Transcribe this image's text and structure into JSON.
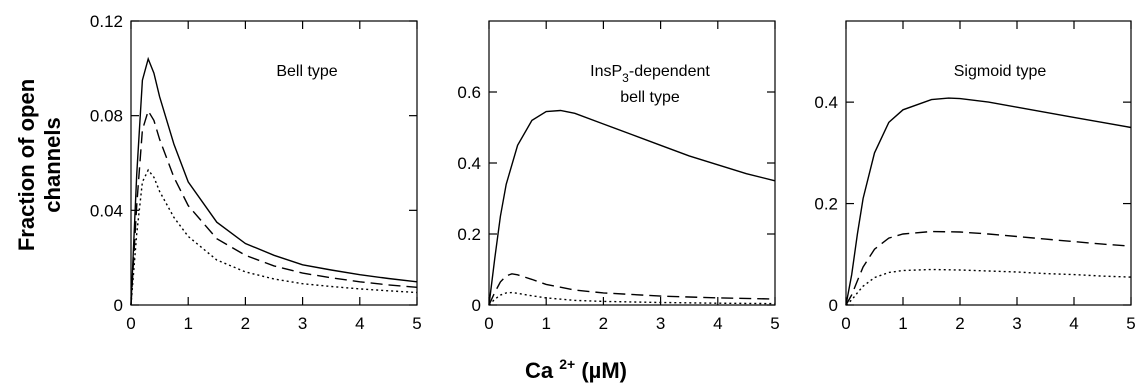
{
  "chart_data": {
    "ylabel_line1": "Fraction of open",
    "ylabel_line2": "channels",
    "xlabel_main": "Ca",
    "xlabel_sup": "2+",
    "xlabel_unit": " (µM)",
    "panels": [
      {
        "type": "line",
        "label_lines": [
          {
            "text": "Bell type",
            "sub": "",
            "rest": ""
          }
        ],
        "xlim": [
          0,
          5
        ],
        "ylim": [
          0,
          0.12
        ],
        "xticks": [
          0,
          1,
          2,
          3,
          4,
          5
        ],
        "xtick_labels": [
          "0",
          "1",
          "2",
          "3",
          "4",
          "5"
        ],
        "yticks": [
          0,
          0.04,
          0.08,
          0.12
        ],
        "ytick_labels": [
          "0",
          "0.04",
          "0.08",
          "0.12"
        ],
        "series": [
          {
            "style": "solid",
            "x": [
              0,
              0.1,
              0.2,
              0.3,
              0.4,
              0.5,
              0.75,
              1,
              1.5,
              2,
              2.5,
              3,
              3.5,
              4,
              4.5,
              5
            ],
            "y": [
              0,
              0.055,
              0.095,
              0.104,
              0.098,
              0.088,
              0.068,
              0.052,
              0.035,
              0.026,
              0.021,
              0.017,
              0.0148,
              0.0128,
              0.0112,
              0.0098
            ]
          },
          {
            "style": "dashed",
            "x": [
              0,
              0.1,
              0.2,
              0.3,
              0.4,
              0.5,
              0.75,
              1,
              1.5,
              2,
              2.5,
              3,
              3.5,
              4,
              4.5,
              5
            ],
            "y": [
              0,
              0.042,
              0.074,
              0.082,
              0.078,
              0.07,
              0.054,
              0.042,
              0.028,
              0.021,
              0.0165,
              0.0135,
              0.0115,
              0.0098,
              0.0085,
              0.0075
            ]
          },
          {
            "style": "dotted",
            "x": [
              0,
              0.1,
              0.2,
              0.3,
              0.4,
              0.5,
              0.75,
              1,
              1.5,
              2,
              2.5,
              3,
              3.5,
              4,
              4.5,
              5
            ],
            "y": [
              0,
              0.03,
              0.052,
              0.057,
              0.054,
              0.048,
              0.037,
              0.029,
              0.019,
              0.014,
              0.011,
              0.009,
              0.0078,
              0.0068,
              0.006,
              0.0053
            ]
          }
        ]
      },
      {
        "type": "line",
        "label_lines": [
          {
            "text": "InsP",
            "sub": "3",
            "rest": "-dependent"
          },
          {
            "text": "bell type",
            "sub": "",
            "rest": ""
          }
        ],
        "xlim": [
          0,
          5
        ],
        "ylim": [
          0,
          0.8
        ],
        "xticks": [
          0,
          1,
          2,
          3,
          4,
          5
        ],
        "xtick_labels": [
          "0",
          "1",
          "2",
          "3",
          "4",
          "5"
        ],
        "yticks": [
          0,
          0.2,
          0.4,
          0.6
        ],
        "ytick_labels": [
          "0",
          "0.2",
          "0.4",
          "0.6"
        ],
        "series": [
          {
            "style": "solid",
            "x": [
              0,
              0.1,
              0.2,
              0.3,
              0.5,
              0.75,
              1,
              1.25,
              1.5,
              2,
              2.5,
              3,
              3.5,
              4,
              4.5,
              5
            ],
            "y": [
              0,
              0.13,
              0.25,
              0.34,
              0.45,
              0.52,
              0.545,
              0.548,
              0.54,
              0.51,
              0.48,
              0.45,
              0.42,
              0.395,
              0.37,
              0.35
            ]
          },
          {
            "style": "dashed",
            "x": [
              0,
              0.1,
              0.2,
              0.3,
              0.4,
              0.5,
              0.75,
              1,
              1.5,
              2,
              3,
              4,
              5
            ],
            "y": [
              0,
              0.035,
              0.065,
              0.082,
              0.088,
              0.085,
              0.072,
              0.058,
              0.042,
              0.034,
              0.025,
              0.02,
              0.017
            ]
          },
          {
            "style": "dotted",
            "x": [
              0,
              0.1,
              0.2,
              0.3,
              0.4,
              0.5,
              0.75,
              1,
              1.5,
              2,
              3,
              4,
              5
            ],
            "y": [
              0,
              0.016,
              0.028,
              0.034,
              0.035,
              0.033,
              0.026,
              0.02,
              0.013,
              0.01,
              0.007,
              0.005,
              0.004
            ]
          }
        ]
      },
      {
        "type": "line",
        "label_lines": [
          {
            "text": "Sigmoid type",
            "sub": "",
            "rest": ""
          }
        ],
        "xlim": [
          0,
          5
        ],
        "ylim": [
          0,
          0.56
        ],
        "xticks": [
          0,
          1,
          2,
          3,
          4,
          5
        ],
        "xtick_labels": [
          "0",
          "1",
          "2",
          "3",
          "4",
          "5"
        ],
        "yticks": [
          0,
          0.2,
          0.4
        ],
        "ytick_labels": [
          "0",
          "0.2",
          "0.4"
        ],
        "series": [
          {
            "style": "solid",
            "x": [
              0,
              0.1,
              0.2,
              0.3,
              0.5,
              0.75,
              1,
              1.5,
              1.8,
              2,
              2.5,
              3,
              3.5,
              4,
              4.5,
              5
            ],
            "y": [
              0,
              0.06,
              0.14,
              0.21,
              0.3,
              0.36,
              0.385,
              0.405,
              0.408,
              0.407,
              0.4,
              0.39,
              0.38,
              0.37,
              0.36,
              0.35
            ]
          },
          {
            "style": "dashed",
            "x": [
              0,
              0.1,
              0.2,
              0.3,
              0.5,
              0.75,
              1,
              1.5,
              2,
              2.5,
              3,
              3.5,
              4,
              4.5,
              5
            ],
            "y": [
              0,
              0.02,
              0.048,
              0.075,
              0.11,
              0.132,
              0.14,
              0.145,
              0.144,
              0.14,
              0.135,
              0.13,
              0.125,
              0.12,
              0.116
            ]
          },
          {
            "style": "dotted",
            "x": [
              0,
              0.1,
              0.2,
              0.3,
              0.5,
              0.75,
              1,
              1.5,
              2,
              2.5,
              3,
              3.5,
              4,
              4.5,
              5
            ],
            "y": [
              0,
              0.01,
              0.024,
              0.037,
              0.054,
              0.064,
              0.068,
              0.07,
              0.069,
              0.067,
              0.065,
              0.062,
              0.06,
              0.057,
              0.055
            ]
          }
        ]
      }
    ]
  }
}
